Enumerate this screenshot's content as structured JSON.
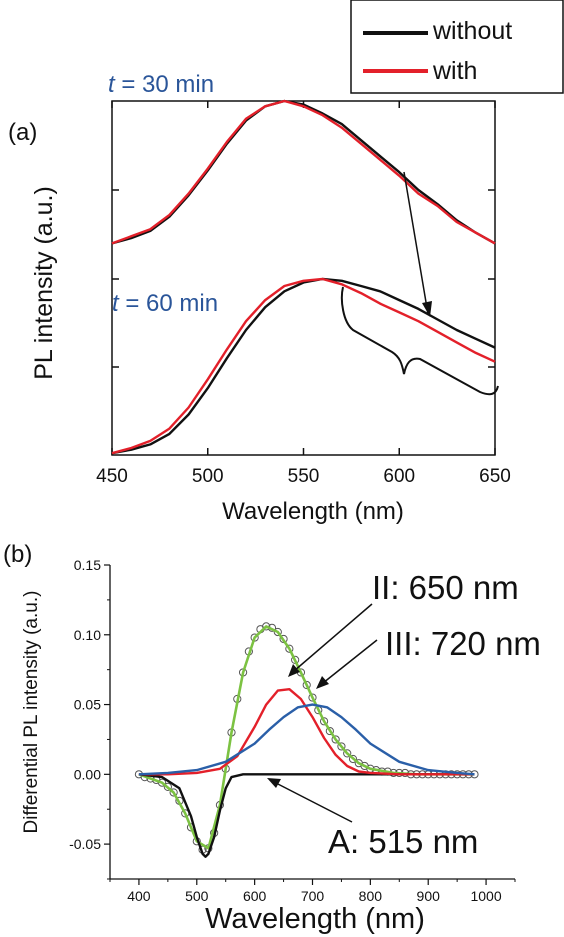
{
  "chart_data": [
    {
      "type": "line",
      "panel_label": "(a)",
      "xlabel": "Wavelength (nm)",
      "ylabel": "PL intensity (a.u.)",
      "xlim": [
        450,
        650
      ],
      "xticks": [
        450,
        500,
        550,
        600,
        650
      ],
      "ylim": [
        0,
        2
      ],
      "y_tick_labels_shown": false,
      "legend": {
        "placement": "top-right",
        "entries": [
          {
            "name": "without",
            "color": "#111111"
          },
          {
            "name": "with",
            "color": "#e3202a"
          }
        ]
      },
      "groups": [
        {
          "label_var": "t",
          "label_rest": " = 30 min",
          "label_color": "#2a5599",
          "series": [
            {
              "name": "without",
              "color": "#111111",
              "x": [
                450,
                460,
                470,
                480,
                490,
                500,
                510,
                520,
                530,
                540,
                550,
                560,
                570,
                580,
                590,
                600,
                610,
                620,
                630,
                640,
                650
              ],
              "y": [
                1.2,
                1.23,
                1.27,
                1.35,
                1.47,
                1.61,
                1.76,
                1.89,
                1.97,
                2.0,
                1.98,
                1.93,
                1.87,
                1.78,
                1.69,
                1.6,
                1.5,
                1.42,
                1.33,
                1.26,
                1.2
              ]
            },
            {
              "name": "with",
              "color": "#e3202a",
              "x": [
                450,
                460,
                470,
                480,
                490,
                500,
                510,
                520,
                530,
                540,
                550,
                560,
                570,
                580,
                590,
                600,
                610,
                620,
                630,
                640,
                650
              ],
              "y": [
                1.2,
                1.24,
                1.28,
                1.36,
                1.48,
                1.62,
                1.77,
                1.9,
                1.97,
                2.0,
                1.97,
                1.92,
                1.85,
                1.76,
                1.67,
                1.58,
                1.48,
                1.41,
                1.32,
                1.26,
                1.2
              ]
            }
          ]
        },
        {
          "label_var": "t",
          "label_rest": " = 60 min",
          "label_color": "#2a5599",
          "series": [
            {
              "name": "without",
              "color": "#111111",
              "x": [
                450,
                460,
                470,
                480,
                490,
                500,
                510,
                520,
                530,
                540,
                550,
                560,
                570,
                580,
                590,
                600,
                610,
                620,
                630,
                640,
                650
              ],
              "y": [
                0.01,
                0.03,
                0.06,
                0.12,
                0.23,
                0.38,
                0.55,
                0.71,
                0.84,
                0.93,
                0.98,
                1.0,
                0.99,
                0.96,
                0.93,
                0.88,
                0.83,
                0.77,
                0.71,
                0.66,
                0.61
              ]
            },
            {
              "name": "with",
              "color": "#e3202a",
              "x": [
                450,
                460,
                470,
                480,
                490,
                500,
                510,
                520,
                530,
                540,
                550,
                560,
                570,
                580,
                590,
                600,
                610,
                620,
                630,
                640,
                650
              ],
              "y": [
                0.01,
                0.04,
                0.08,
                0.15,
                0.27,
                0.43,
                0.6,
                0.76,
                0.88,
                0.96,
                0.99,
                1.0,
                0.97,
                0.92,
                0.86,
                0.81,
                0.76,
                0.7,
                0.64,
                0.58,
                0.53
              ]
            }
          ]
        }
      ]
    },
    {
      "type": "line",
      "panel_label": "(b)",
      "xlabel": "Wavelength (nm)",
      "ylabel": "Differential PL intensity (a.u.)",
      "xlim": [
        350,
        1050
      ],
      "ylim": [
        -0.075,
        0.15
      ],
      "xticks": [
        400,
        500,
        600,
        700,
        800,
        900,
        1000
      ],
      "yticks": [
        -0.05,
        0.0,
        0.05,
        0.1,
        0.15
      ],
      "ytick_labels": [
        "-0.05",
        "0.00",
        "0.05",
        "0.10",
        "0.15"
      ],
      "series": [
        {
          "name": "data",
          "style": "open-circles",
          "color": "#555555",
          "x": [
            400,
            410,
            420,
            430,
            440,
            450,
            460,
            470,
            480,
            490,
            500,
            510,
            520,
            530,
            540,
            550,
            560,
            570,
            580,
            590,
            600,
            610,
            620,
            630,
            640,
            650,
            660,
            670,
            680,
            690,
            700,
            710,
            720,
            730,
            740,
            750,
            760,
            770,
            780,
            790,
            800,
            810,
            820,
            830,
            840,
            850,
            860,
            870,
            880,
            890,
            900,
            910,
            920,
            930,
            940,
            950,
            960,
            970,
            980
          ],
          "y": [
            0,
            -0.002,
            -0.003,
            -0.004,
            -0.006,
            -0.009,
            -0.013,
            -0.019,
            -0.028,
            -0.038,
            -0.048,
            -0.054,
            -0.053,
            -0.042,
            -0.022,
            0.004,
            0.03,
            0.054,
            0.073,
            0.088,
            0.098,
            0.104,
            0.106,
            0.105,
            0.102,
            0.097,
            0.09,
            0.082,
            0.073,
            0.064,
            0.055,
            0.046,
            0.038,
            0.031,
            0.025,
            0.02,
            0.015,
            0.011,
            0.008,
            0.006,
            0.004,
            0.003,
            0.002,
            0.002,
            0.001,
            0.001,
            0.001,
            0,
            0,
            0,
            0,
            0,
            0,
            0,
            0,
            0,
            0,
            0,
            0
          ]
        },
        {
          "name": "fit",
          "color": "#7cc242",
          "x": [
            400,
            420,
            440,
            460,
            480,
            500,
            520,
            540,
            560,
            580,
            600,
            620,
            640,
            660,
            680,
            700,
            720,
            740,
            760,
            780,
            800,
            840,
            880,
            920,
            960,
            980
          ],
          "y": [
            0,
            -0.003,
            -0.006,
            -0.013,
            -0.028,
            -0.048,
            -0.053,
            -0.022,
            0.03,
            0.073,
            0.098,
            0.106,
            0.102,
            0.09,
            0.073,
            0.055,
            0.038,
            0.025,
            0.015,
            0.008,
            0.004,
            0.001,
            0,
            0,
            0,
            0
          ]
        },
        {
          "name": "A: 515 nm",
          "color": "#111111",
          "x": [
            400,
            440,
            470,
            490,
            500,
            510,
            515,
            520,
            530,
            540,
            550,
            560,
            580,
            600,
            700,
            800,
            900,
            980
          ],
          "y": [
            0,
            -0.002,
            -0.01,
            -0.03,
            -0.045,
            -0.057,
            -0.059,
            -0.057,
            -0.045,
            -0.026,
            -0.01,
            -0.002,
            0,
            0,
            0,
            0,
            0,
            0
          ]
        },
        {
          "name": "II: 650 nm",
          "color": "#e3202a",
          "x": [
            400,
            450,
            500,
            540,
            570,
            600,
            620,
            640,
            660,
            680,
            700,
            720,
            740,
            760,
            780,
            800,
            850,
            900,
            980
          ],
          "y": [
            0,
            0,
            0.001,
            0.004,
            0.013,
            0.034,
            0.05,
            0.06,
            0.061,
            0.054,
            0.041,
            0.026,
            0.014,
            0.006,
            0.002,
            0.001,
            0,
            0,
            0
          ]
        },
        {
          "name": "III: 720 nm",
          "color": "#2a5fa8",
          "x": [
            400,
            450,
            500,
            550,
            600,
            625,
            650,
            675,
            700,
            725,
            750,
            775,
            800,
            850,
            900,
            950,
            980
          ],
          "y": [
            0,
            0.001,
            0.003,
            0.009,
            0.022,
            0.032,
            0.041,
            0.048,
            0.05,
            0.048,
            0.041,
            0.032,
            0.022,
            0.009,
            0.003,
            0.001,
            0
          ]
        }
      ],
      "annotations": [
        {
          "text": "II: 650 nm"
        },
        {
          "text": "III: 720 nm"
        },
        {
          "text": "A: 515 nm"
        }
      ]
    }
  ]
}
